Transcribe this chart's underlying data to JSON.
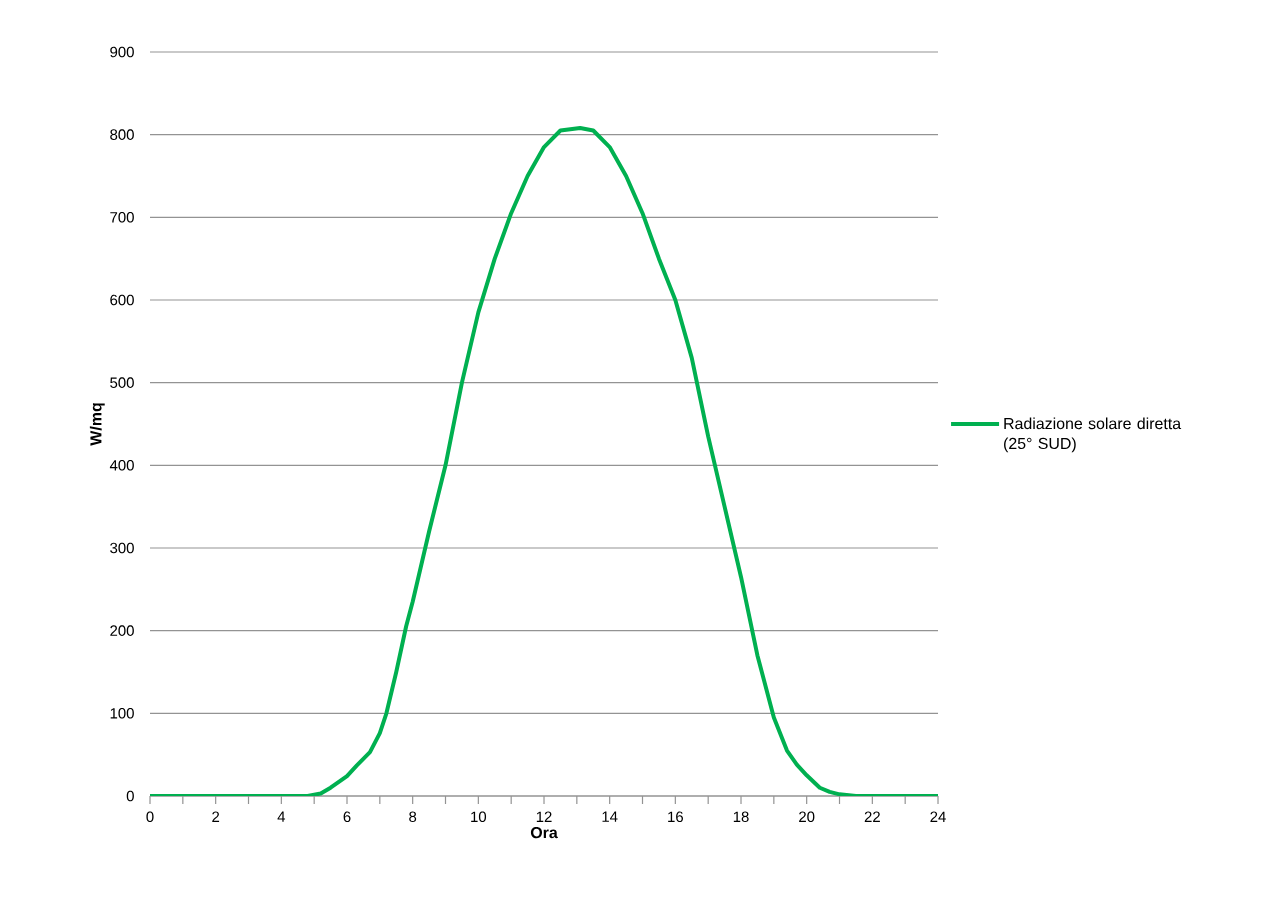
{
  "chart_data": {
    "type": "line",
    "xlabel": "Ora",
    "ylabel": "W/mq",
    "x": [
      0,
      1,
      2,
      3,
      4,
      4.8,
      5.2,
      5.5,
      6,
      6.3,
      6.7,
      7.0,
      7.2,
      7.5,
      7.8,
      8.0,
      8.5,
      9.0,
      9.5,
      10.0,
      10.5,
      11.0,
      11.5,
      12.0,
      12.5,
      13.1,
      13.5,
      14.0,
      14.5,
      15.0,
      15.5,
      16.0,
      16.5,
      17.0,
      17.5,
      18.0,
      18.5,
      19.0,
      19.4,
      19.7,
      20.0,
      20.4,
      20.7,
      21.0,
      21.5,
      22,
      23,
      24
    ],
    "series": [
      {
        "name": "Radiazione solare diretta (25° SUD)",
        "color": "#00b050",
        "values": [
          0,
          0,
          0,
          0,
          0,
          0,
          3,
          10,
          24,
          37,
          53,
          76,
          100,
          150,
          205,
          235,
          320,
          400,
          500,
          585,
          650,
          705,
          750,
          785,
          805,
          808,
          805,
          785,
          750,
          705,
          650,
          600,
          530,
          435,
          350,
          265,
          170,
          95,
          55,
          38,
          25,
          10,
          5,
          2,
          0,
          0,
          0,
          0
        ]
      }
    ],
    "xlim": [
      0,
      24
    ],
    "ylim": [
      0,
      900
    ],
    "xticks": [
      0,
      {
        "value": 1,
        "label": null
      },
      2,
      {
        "value": 3,
        "label": null
      },
      4,
      {
        "value": 5,
        "label": null
      },
      6,
      {
        "value": 7,
        "label": null
      },
      8,
      {
        "value": 9,
        "label": null
      },
      10,
      {
        "value": 11,
        "label": null
      },
      12,
      {
        "value": 13,
        "label": null
      },
      14,
      {
        "value": 15,
        "label": null
      },
      16,
      {
        "value": 17,
        "label": null
      },
      18,
      {
        "value": 19,
        "label": null
      },
      20,
      {
        "value": 21,
        "label": null
      },
      22,
      {
        "value": 23,
        "label": null
      },
      24
    ],
    "yticks": [
      0,
      100,
      200,
      300,
      400,
      500,
      600,
      700,
      800,
      900
    ],
    "grid": "y",
    "legend": "right",
    "marker": "none",
    "line_style": "solid"
  }
}
